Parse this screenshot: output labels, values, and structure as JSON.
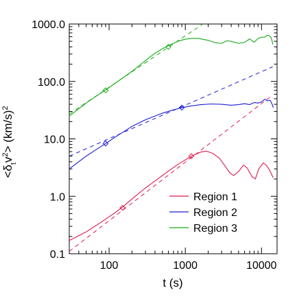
{
  "chart_data": {
    "type": "line",
    "title": "",
    "xlabel": "t (s)",
    "ylabel_parts": {
      "open": "<δ",
      "sub": "t",
      "mid": "v",
      "sup": "2",
      "close": "> (km/s)",
      "sup2": "2"
    },
    "x_scale": "log",
    "y_scale": "log",
    "xlim": [
      30,
      16000
    ],
    "ylim": [
      0.1,
      1000
    ],
    "x_ticks": [
      100,
      1000,
      10000
    ],
    "x_tick_labels": [
      "100",
      "1000",
      "10000"
    ],
    "y_ticks": [
      0.1,
      1,
      10,
      100,
      1000
    ],
    "y_tick_labels": [
      "0.1",
      "1.0",
      "10.0",
      "100.0",
      "1000.0"
    ],
    "grid": false,
    "legend": "bottom-right",
    "series": [
      {
        "name": "Region 1",
        "color": "#e0184a",
        "x": [
          30,
          50,
          80,
          120,
          150,
          200,
          300,
          500,
          800,
          1200,
          1600,
          1900,
          2300,
          2800,
          3300,
          3800,
          4300,
          5000,
          5800,
          6500,
          7500,
          8300,
          9200,
          10500,
          11500,
          12500,
          13200,
          13800,
          14200
        ],
        "y": [
          0.17,
          0.24,
          0.36,
          0.52,
          0.65,
          0.9,
          1.4,
          2.3,
          3.6,
          5.0,
          5.9,
          6.1,
          5.6,
          4.6,
          3.4,
          2.6,
          2.3,
          2.7,
          3.5,
          3.1,
          2.2,
          2.0,
          3.0,
          3.8,
          3.5,
          3.0,
          2.6,
          2.3,
          2.1
        ],
        "fit_x": [
          30,
          14000
        ],
        "fit_y": [
          0.11,
          58
        ],
        "markers": [
          [
            150,
            0.63
          ],
          [
            1200,
            5.0
          ]
        ]
      },
      {
        "name": "Region 2",
        "color": "#1a1ad6",
        "x": [
          30,
          50,
          70,
          90,
          130,
          200,
          300,
          500,
          700,
          900,
          1200,
          1600,
          2200,
          3000,
          4000,
          5000,
          6000,
          7000,
          8000,
          9000,
          10000,
          11000,
          12000,
          13000,
          13800,
          14300
        ],
        "y": [
          3.0,
          5.0,
          6.7,
          8.3,
          11.5,
          16.5,
          21.5,
          28,
          32,
          35,
          37.5,
          39.5,
          40.5,
          40,
          38.5,
          39.5,
          41,
          39.5,
          43,
          42,
          44,
          49,
          46,
          47,
          40,
          35
        ],
        "fit_x": [
          30,
          14000
        ],
        "fit_y": [
          5.0,
          180
        ],
        "markers": [
          [
            90,
            8.3
          ],
          [
            900,
            35
          ]
        ]
      },
      {
        "name": "Region 3",
        "color": "#17a817",
        "x": [
          30,
          50,
          70,
          90,
          130,
          200,
          300,
          400,
          500,
          600,
          800,
          1000,
          1200,
          1500,
          2000,
          2500,
          3000,
          3500,
          4000,
          5000,
          6000,
          7000,
          8000,
          9000,
          10000,
          11000,
          12000,
          12800,
          13300,
          13700,
          14100
        ],
        "y": [
          25,
          42,
          57,
          71,
          100,
          150,
          230,
          310,
          370,
          420,
          500,
          545,
          560,
          560,
          520,
          470,
          460,
          510,
          500,
          460,
          480,
          550,
          480,
          560,
          590,
          590,
          640,
          620,
          580,
          520,
          440
        ],
        "fit_x": [
          30,
          1700
        ],
        "fit_y": [
          27,
          1000
        ],
        "markers": [
          [
            90,
            70
          ],
          [
            600,
            400
          ]
        ]
      }
    ]
  }
}
